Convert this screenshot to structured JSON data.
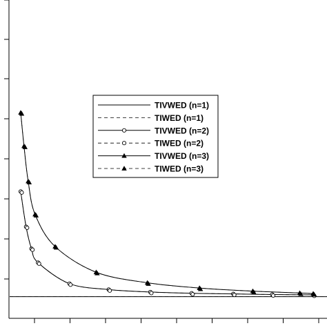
{
  "chart_data": {
    "type": "line",
    "title": "",
    "xlabel": "",
    "ylabel": "",
    "xlim": [
      0,
      1
    ],
    "ylim": [
      0,
      1
    ],
    "grid": false,
    "legend_position": "center",
    "series": [
      {
        "name": "TIVWED (n=1)",
        "style": "solid",
        "marker": "none",
        "x": [
          0.0,
          0.2,
          0.4,
          0.6,
          0.8,
          1.0
        ],
        "y": [
          0.07,
          0.07,
          0.07,
          0.07,
          0.07,
          0.07
        ]
      },
      {
        "name": "TIWED (n=1)",
        "style": "dashed",
        "marker": "none",
        "x": [
          0.0,
          0.2,
          0.4,
          0.6,
          0.8,
          1.0
        ],
        "y": [
          0.07,
          0.07,
          0.07,
          0.07,
          0.07,
          0.07
        ]
      },
      {
        "name": "TIVWED (n=2)",
        "style": "solid",
        "marker": "circle",
        "x": [
          0.0,
          0.018,
          0.036,
          0.058,
          0.163,
          0.294,
          0.433,
          0.571,
          0.71,
          0.84,
          0.977
        ],
        "y": [
          0.41,
          0.296,
          0.225,
          0.18,
          0.112,
          0.093,
          0.085,
          0.081,
          0.079,
          0.077,
          0.076
        ]
      },
      {
        "name": "TIWED (n=2)",
        "style": "dashed",
        "marker": "circle",
        "x": [
          0.0,
          0.018,
          0.036,
          0.058,
          0.163,
          0.294,
          0.433,
          0.571,
          0.71,
          0.84,
          0.977
        ],
        "y": [
          0.41,
          0.296,
          0.225,
          0.18,
          0.112,
          0.093,
          0.085,
          0.081,
          0.079,
          0.077,
          0.076
        ]
      },
      {
        "name": "TIVWED (n=3)",
        "style": "solid",
        "marker": "triangle",
        "x": [
          0.0,
          0.011,
          0.025,
          0.048,
          0.115,
          0.252,
          0.423,
          0.597,
          0.775,
          0.932,
          0.977
        ],
        "y": [
          0.665,
          0.557,
          0.443,
          0.336,
          0.232,
          0.149,
          0.115,
          0.098,
          0.088,
          0.082,
          0.08
        ]
      },
      {
        "name": "TIWED (n=3)",
        "style": "dashed",
        "marker": "triangle",
        "x": [
          0.0,
          0.011,
          0.025,
          0.048,
          0.115,
          0.252,
          0.423,
          0.597,
          0.775,
          0.932,
          0.977
        ],
        "y": [
          0.665,
          0.557,
          0.443,
          0.336,
          0.232,
          0.149,
          0.115,
          0.098,
          0.088,
          0.082,
          0.08
        ]
      }
    ]
  }
}
